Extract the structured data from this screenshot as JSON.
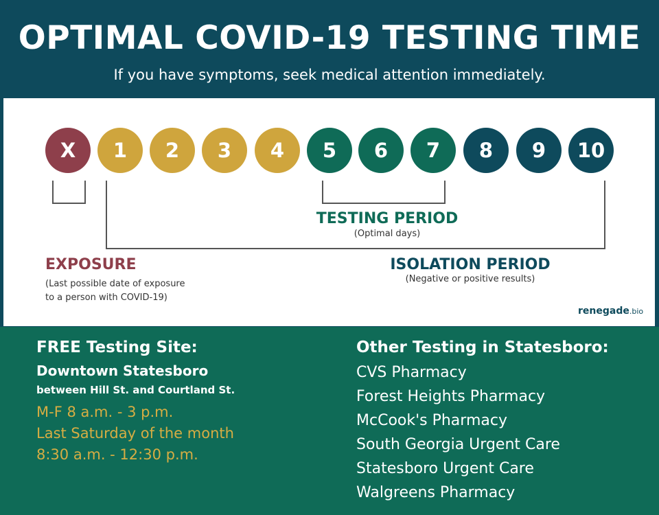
{
  "header": {
    "title": "OPTIMAL COVID-19 TESTING TIME",
    "subtitle": "If you have symptoms, seek medical attention immediately."
  },
  "timeline": {
    "days": [
      {
        "label": "X",
        "phase": "exposure"
      },
      {
        "label": "1",
        "phase": "early"
      },
      {
        "label": "2",
        "phase": "early"
      },
      {
        "label": "3",
        "phase": "early"
      },
      {
        "label": "4",
        "phase": "early"
      },
      {
        "label": "5",
        "phase": "testing"
      },
      {
        "label": "6",
        "phase": "testing"
      },
      {
        "label": "7",
        "phase": "testing"
      },
      {
        "label": "8",
        "phase": "late"
      },
      {
        "label": "9",
        "phase": "late"
      },
      {
        "label": "10",
        "phase": "late"
      }
    ],
    "phase_colors": {
      "exposure": "#8e3f4b",
      "early": "#cfa53d",
      "testing": "#0f6b57",
      "late": "#0e4a5c"
    }
  },
  "labels": {
    "testing": {
      "title": "TESTING PERIOD",
      "note": "(Optimal days)",
      "color": "#0f6b57"
    },
    "exposure": {
      "title": "EXPOSURE",
      "note_line1": "(Last possible date of exposure",
      "note_line2": "to a person with COVID-19)",
      "color": "#8e3f4b"
    },
    "isolation": {
      "title": "ISOLATION PERIOD",
      "note": "(Negative or positive results)",
      "color": "#0e4a5c"
    }
  },
  "brand": {
    "name": "renegade",
    "tld": ".bio"
  },
  "free_site": {
    "heading": "FREE Testing Site:",
    "location": "Downtown Statesboro",
    "cross_streets": "between Hill St. and Courtland St.",
    "hours": [
      "M-F 8 a.m. - 3 p.m.",
      "Last Saturday of the month",
      "8:30 a.m. - 12:30 p.m."
    ]
  },
  "other_testing": {
    "heading": "Other Testing in Statesboro:",
    "locations": [
      "CVS Pharmacy",
      "Forest Heights Pharmacy",
      "McCook's Pharmacy",
      "South Georgia Urgent Care",
      "Statesboro Urgent Care",
      "Walgreens Pharmacy"
    ]
  }
}
